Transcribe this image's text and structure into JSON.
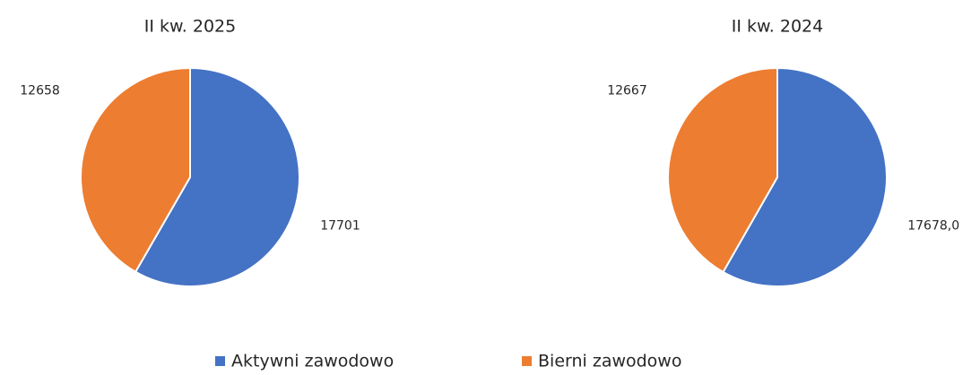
{
  "chart_data": [
    {
      "type": "pie",
      "title": "II kw. 2025",
      "categories": [
        "Aktywni zawodowo",
        "Bierni zawodowo"
      ],
      "colors": [
        "#4472c4",
        "#ed7d31"
      ],
      "values": [
        17701,
        12658
      ]
    },
    {
      "type": "pie",
      "title": "II kw. 2024",
      "values": [
        17678,
        12667
      ],
      "value_labels": [
        "17678,0",
        "12667"
      ]
    }
  ]
}
